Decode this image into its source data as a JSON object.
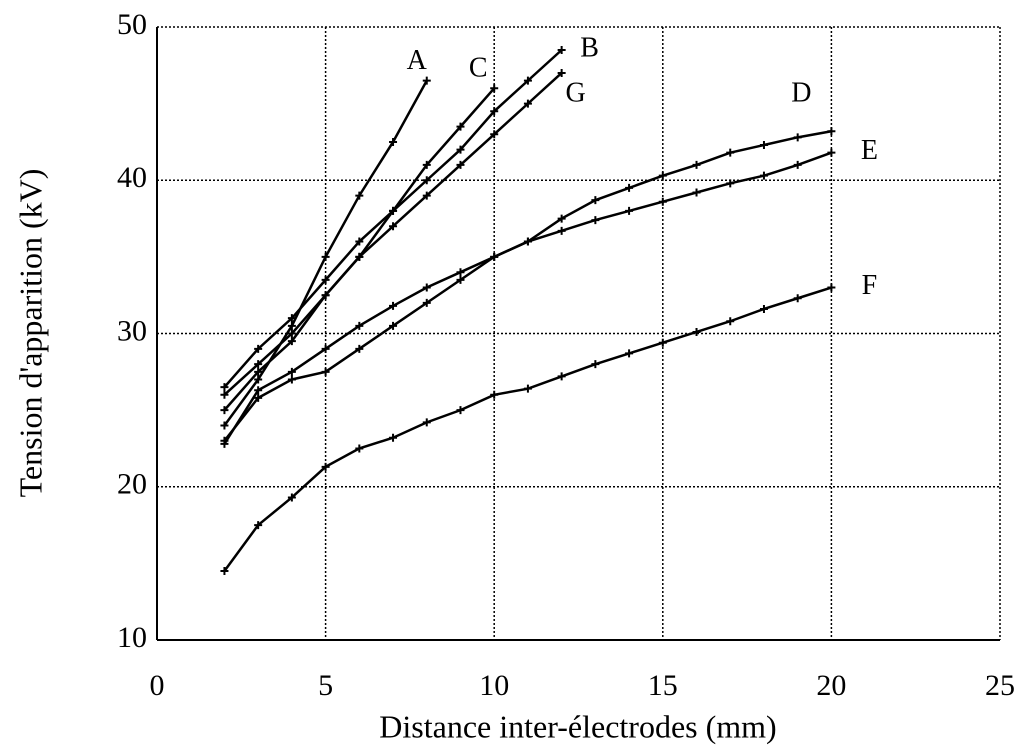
{
  "chart_data": {
    "type": "line",
    "xlabel": "Distance inter-électrodes (mm)",
    "ylabel": "Tension d'apparition (kV)",
    "xlim": [
      0,
      25
    ],
    "xticks": [
      0,
      5,
      10,
      15,
      20,
      25
    ],
    "ylim": [
      10,
      50
    ],
    "yticks": [
      10,
      20,
      30,
      40,
      50
    ],
    "grid": true,
    "series": [
      {
        "name": "A",
        "color": "#000000",
        "x": [
          2,
          3,
          4,
          5,
          6,
          7,
          8
        ],
        "values": [
          24,
          27,
          30.5,
          35,
          39,
          42.5,
          46.5
        ]
      },
      {
        "name": "C",
        "color": "#000000",
        "x": [
          2,
          3,
          4,
          5,
          6,
          7,
          8,
          9,
          10
        ],
        "values": [
          25,
          27.5,
          29.5,
          32.5,
          35,
          38,
          41,
          43.5,
          46
        ]
      },
      {
        "name": "B",
        "color": "#000000",
        "x": [
          2,
          3,
          4,
          5,
          6,
          7,
          8,
          9,
          10,
          11,
          12
        ],
        "values": [
          26.5,
          29,
          31,
          33.5,
          36,
          38,
          40,
          42,
          44.5,
          46.5,
          48.5
        ]
      },
      {
        "name": "G",
        "color": "#000000",
        "x": [
          2,
          3,
          4,
          5,
          6,
          7,
          8,
          9,
          10,
          11,
          12
        ],
        "values": [
          26,
          28,
          30,
          32.5,
          35,
          37,
          39,
          41,
          43,
          45,
          47
        ]
      },
      {
        "name": "D",
        "color": "#000000",
        "x": [
          2,
          3,
          4,
          5,
          6,
          7,
          8,
          9,
          10,
          11,
          12,
          13,
          14,
          15,
          16,
          17,
          18,
          19,
          20
        ],
        "values": [
          23,
          25.8,
          27,
          27.5,
          29,
          30.5,
          32,
          33.5,
          35,
          36,
          37.5,
          38.7,
          39.5,
          40.3,
          41,
          41.8,
          42.3,
          42.8,
          43.2
        ]
      },
      {
        "name": "E",
        "color": "#000000",
        "x": [
          2,
          3,
          4,
          5,
          6,
          7,
          8,
          9,
          10,
          11,
          12,
          13,
          14,
          15,
          16,
          17,
          18,
          19,
          20
        ],
        "values": [
          22.8,
          26.3,
          27.5,
          29,
          30.5,
          31.8,
          33,
          34,
          35,
          36,
          36.7,
          37.4,
          38,
          38.6,
          39.2,
          39.8,
          40.3,
          41,
          41.8
        ]
      },
      {
        "name": "F",
        "color": "#000000",
        "x": [
          2,
          3,
          4,
          5,
          6,
          7,
          8,
          9,
          10,
          11,
          12,
          13,
          14,
          15,
          16,
          17,
          18,
          19,
          20
        ],
        "values": [
          14.5,
          17.5,
          19.3,
          21.3,
          22.5,
          23.2,
          24.2,
          25,
          26,
          26.4,
          27.2,
          28,
          28.7,
          29.4,
          30.1,
          30.8,
          31.6,
          32.3,
          33
        ]
      }
    ]
  }
}
